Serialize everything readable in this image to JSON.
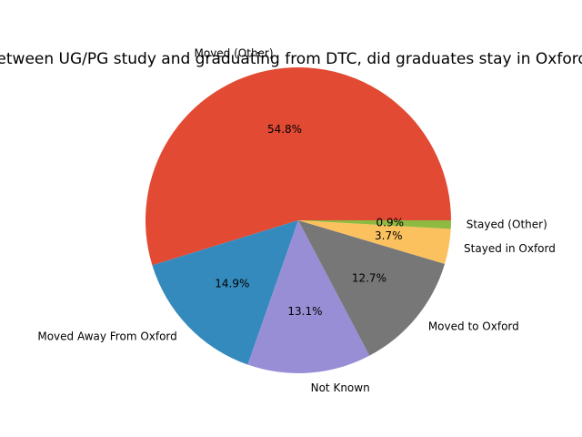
{
  "chart_data": {
    "type": "pie",
    "title": "Between UG/PG study and graduating from DTC, did graduates stay in Oxford?",
    "slices": [
      {
        "label": "Moved (Other)",
        "value": 54.8,
        "pct_label": "54.8%",
        "color": "#E24A33"
      },
      {
        "label": "Moved Away From Oxford",
        "value": 14.9,
        "pct_label": "14.9%",
        "color": "#348ABD"
      },
      {
        "label": "Not Known",
        "value": 13.1,
        "pct_label": "13.1%",
        "color": "#988ED5"
      },
      {
        "label": "Moved to Oxford",
        "value": 12.7,
        "pct_label": "12.7%",
        "color": "#777777"
      },
      {
        "label": "Stayed in Oxford",
        "value": 3.7,
        "pct_label": "3.7%",
        "color": "#FBC15E"
      },
      {
        "label": "Stayed (Other)",
        "value": 0.9,
        "pct_label": "0.9%",
        "color": "#8EBA42"
      }
    ],
    "start_angle_deg": 0,
    "direction": "counterclockwise"
  }
}
